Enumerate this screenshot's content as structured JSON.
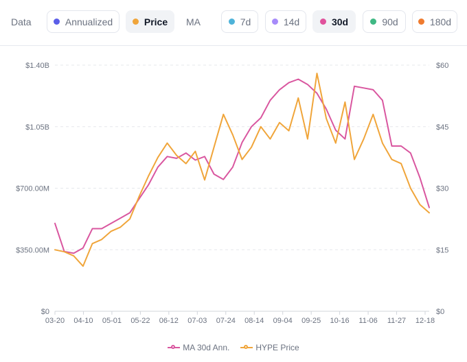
{
  "toolbar": {
    "data_label": "Data",
    "ma_label": "MA",
    "data_options": [
      {
        "label": "Annualized",
        "color": "#5b5ee8",
        "active": false
      },
      {
        "label": "Price",
        "color": "#f0a53a",
        "active": true
      }
    ],
    "ma_options": [
      {
        "label": "7d",
        "color": "#4fb3d9",
        "active": false
      },
      {
        "label": "14d",
        "color": "#a78bfa",
        "active": false
      },
      {
        "label": "30d",
        "color": "#e0529c",
        "active": true
      },
      {
        "label": "90d",
        "color": "#3fb884",
        "active": false
      },
      {
        "label": "180d",
        "color": "#ef7b2f",
        "active": false
      }
    ]
  },
  "chart_data": {
    "type": "line",
    "x_tick_labels": [
      "03-20",
      "04-10",
      "05-01",
      "05-22",
      "06-12",
      "07-03",
      "07-24",
      "08-14",
      "09-04",
      "09-25",
      "10-16",
      "11-06",
      "11-27",
      "12-18"
    ],
    "y_left_ticks": [
      "$0",
      "$350.00M",
      "$700.00M",
      "$1.05B",
      "$1.40B"
    ],
    "y_left_values": [
      0,
      350000000,
      700000000,
      1050000000,
      1400000000
    ],
    "y_right_ticks": [
      "$0",
      "$15",
      "$30",
      "$45",
      "$60"
    ],
    "y_right_values": [
      0,
      15,
      30,
      45,
      60
    ],
    "ylim_left": [
      0,
      1400000000
    ],
    "ylim_right": [
      0,
      60
    ],
    "grid": true,
    "legend_position": "bottom-center",
    "series": [
      {
        "name": "MA 30d Ann.",
        "axis": "left",
        "color": "#d9569f",
        "x": [
          0,
          1,
          2,
          3,
          4,
          5,
          6,
          7,
          8,
          9,
          10,
          11,
          12,
          13,
          14,
          15,
          16,
          17,
          18,
          19,
          20,
          21,
          22,
          23,
          24,
          25,
          26,
          27,
          28,
          29,
          30,
          31,
          32,
          33,
          34,
          35,
          36,
          37,
          38,
          39,
          40
        ],
        "values": [
          500000000,
          340000000,
          330000000,
          360000000,
          470000000,
          470000000,
          500000000,
          530000000,
          560000000,
          640000000,
          720000000,
          820000000,
          880000000,
          870000000,
          900000000,
          860000000,
          880000000,
          780000000,
          750000000,
          820000000,
          960000000,
          1050000000,
          1100000000,
          1200000000,
          1260000000,
          1300000000,
          1320000000,
          1290000000,
          1240000000,
          1150000000,
          1030000000,
          980000000,
          1280000000,
          1270000000,
          1260000000,
          1200000000,
          940000000,
          940000000,
          900000000,
          760000000,
          590000000
        ]
      },
      {
        "name": "HYPE Price",
        "axis": "right",
        "color": "#f0a53a",
        "x": [
          0,
          1,
          2,
          3,
          4,
          5,
          6,
          7,
          8,
          9,
          10,
          11,
          12,
          13,
          14,
          15,
          16,
          17,
          18,
          19,
          20,
          21,
          22,
          23,
          24,
          25,
          26,
          27,
          28,
          29,
          30,
          31,
          32,
          33,
          34,
          35,
          36,
          37,
          38,
          39,
          40
        ],
        "values": [
          15,
          14.5,
          13.5,
          11,
          16.5,
          17.5,
          19.5,
          20.5,
          22.5,
          28,
          33,
          37.5,
          41,
          38,
          36,
          39,
          32,
          40,
          48,
          43,
          37,
          40,
          45,
          42,
          46,
          44,
          52,
          42,
          58,
          47,
          41,
          51,
          37,
          42,
          48,
          41,
          37,
          36,
          30,
          26,
          24
        ]
      }
    ]
  },
  "legend": [
    {
      "label": "MA 30d Ann.",
      "color": "#d9569f"
    },
    {
      "label": "HYPE Price",
      "color": "#f0a53a"
    }
  ]
}
